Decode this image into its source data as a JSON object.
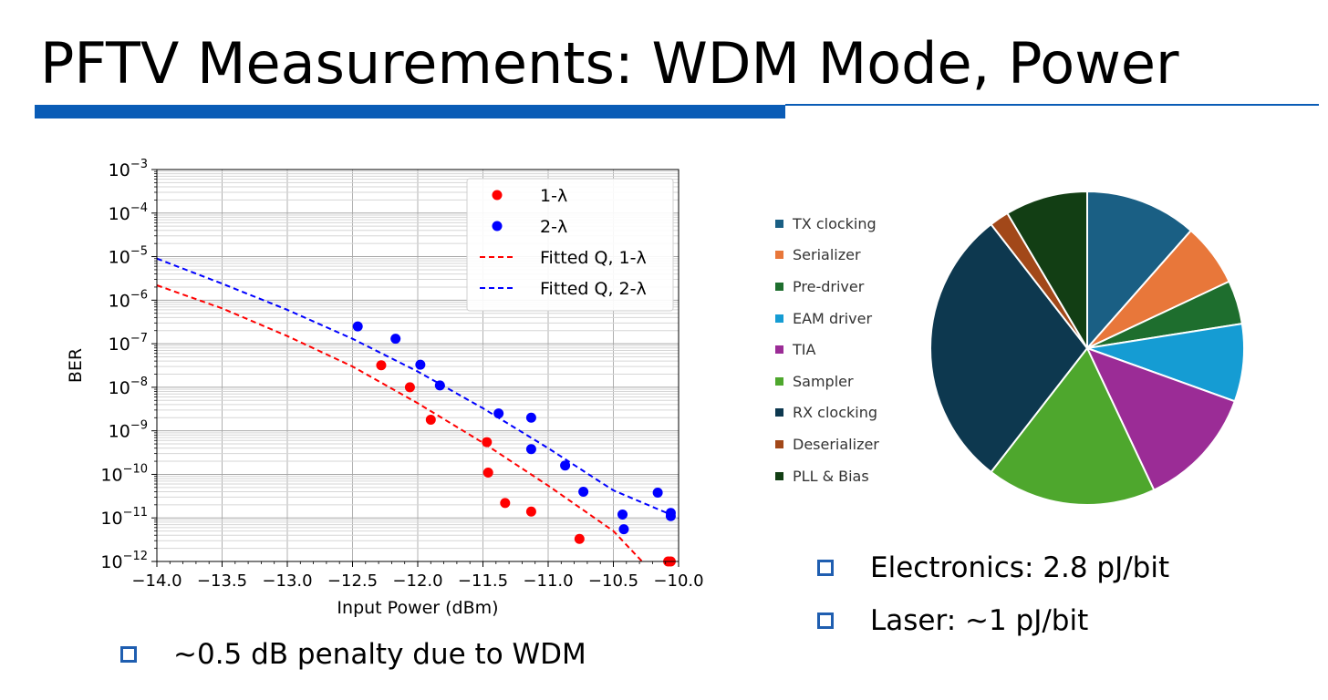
{
  "title": "PFTV Measurements: WDM Mode, Power",
  "colors": {
    "accent": "#0a5cb6",
    "bullet": "#1f5eb0"
  },
  "chart_data": [
    {
      "type": "scatter",
      "xlabel": "Input Power (dBm)",
      "ylabel": "BER",
      "xlim": [
        -14.0,
        -10.0
      ],
      "ylim": [
        1e-12,
        0.001
      ],
      "yscale": "log",
      "grid": true,
      "legend_position": "top-right",
      "xticks": [
        "−14.0",
        "−13.5",
        "−13.0",
        "−12.5",
        "−12.0",
        "−11.5",
        "−11.0",
        "−10.5",
        "−10.0"
      ],
      "yticks": [
        {
          "base": "10",
          "exp": "−3"
        },
        {
          "base": "10",
          "exp": "−4"
        },
        {
          "base": "10",
          "exp": "−5"
        },
        {
          "base": "10",
          "exp": "−6"
        },
        {
          "base": "10",
          "exp": "−7"
        },
        {
          "base": "10",
          "exp": "−8"
        },
        {
          "base": "10",
          "exp": "−9"
        },
        {
          "base": "10",
          "exp": "−10"
        },
        {
          "base": "10",
          "exp": "−11"
        },
        {
          "base": "10",
          "exp": "−12"
        }
      ],
      "series": [
        {
          "name": "1-λ",
          "kind": "points",
          "color": "#ff0000",
          "x": [
            -12.28,
            -12.06,
            -11.9,
            -11.47,
            -11.46,
            -11.33,
            -11.13,
            -10.76,
            -10.08,
            -10.06
          ],
          "y": [
            3.2e-08,
            1e-08,
            1.8e-09,
            5.5e-10,
            1.1e-10,
            2.2e-11,
            1.4e-11,
            3.3e-12,
            1e-12,
            1e-12
          ]
        },
        {
          "name": "2-λ",
          "kind": "points",
          "color": "#0000ff",
          "x": [
            -12.46,
            -12.17,
            -11.98,
            -11.83,
            -11.38,
            -11.13,
            -11.13,
            -10.87,
            -10.73,
            -10.43,
            -10.42,
            -10.16,
            -10.06,
            -10.06
          ],
          "y": [
            2.5e-07,
            1.3e-07,
            3.3e-08,
            1.1e-08,
            2.5e-09,
            2e-09,
            3.8e-10,
            1.6e-10,
            4e-11,
            1.2e-11,
            5.5e-12,
            3.8e-11,
            1.3e-11,
            1.1e-11
          ]
        },
        {
          "name": "Fitted Q, 1-λ",
          "kind": "dashed",
          "color": "#ff0000",
          "x": [
            -14.0,
            -13.5,
            -13.0,
            -12.5,
            -12.0,
            -11.5,
            -11.0,
            -10.5,
            -10.28
          ],
          "y": [
            2.2e-06,
            6.5e-07,
            1.5e-07,
            3e-08,
            4.3e-09,
            5.3e-10,
            5.5e-11,
            5e-12,
            1e-12
          ]
        },
        {
          "name": "Fitted Q, 2-λ",
          "kind": "dashed",
          "color": "#0000ff",
          "x": [
            -14.0,
            -13.5,
            -13.0,
            -12.5,
            -12.0,
            -11.5,
            -11.0,
            -10.5,
            -10.0
          ],
          "y": [
            9e-06,
            2.4e-06,
            6e-07,
            1.3e-07,
            2.3e-08,
            3.3e-09,
            4e-10,
            4.3e-11,
            1e-11
          ]
        }
      ]
    },
    {
      "type": "pie",
      "start_angle": "12 o'clock, clockwise",
      "slices": [
        {
          "label": "TX clocking",
          "value": 11.5,
          "color": "#1a5f84"
        },
        {
          "label": "Serializer",
          "value": 6.5,
          "color": "#e8773a"
        },
        {
          "label": "Pre-driver",
          "value": 4.5,
          "color": "#1e6e2e"
        },
        {
          "label": "EAM driver",
          "value": 8.0,
          "color": "#159cd3"
        },
        {
          "label": "TIA",
          "value": 12.5,
          "color": "#9b2c96"
        },
        {
          "label": "Sampler",
          "value": 17.5,
          "color": "#4ea72d"
        },
        {
          "label": "RX clocking",
          "value": 29.0,
          "color": "#0d384f"
        },
        {
          "label": "Deserializer",
          "value": 2.0,
          "color": "#a24819"
        },
        {
          "label": "PLL & Bias",
          "value": 8.5,
          "color": "#123e14"
        }
      ]
    }
  ],
  "bullets_left": [
    "~0.5 dB penalty due to WDM"
  ],
  "bullets_right": [
    "Electronics: 2.8 pJ/bit",
    "Laser: ~1 pJ/bit"
  ]
}
